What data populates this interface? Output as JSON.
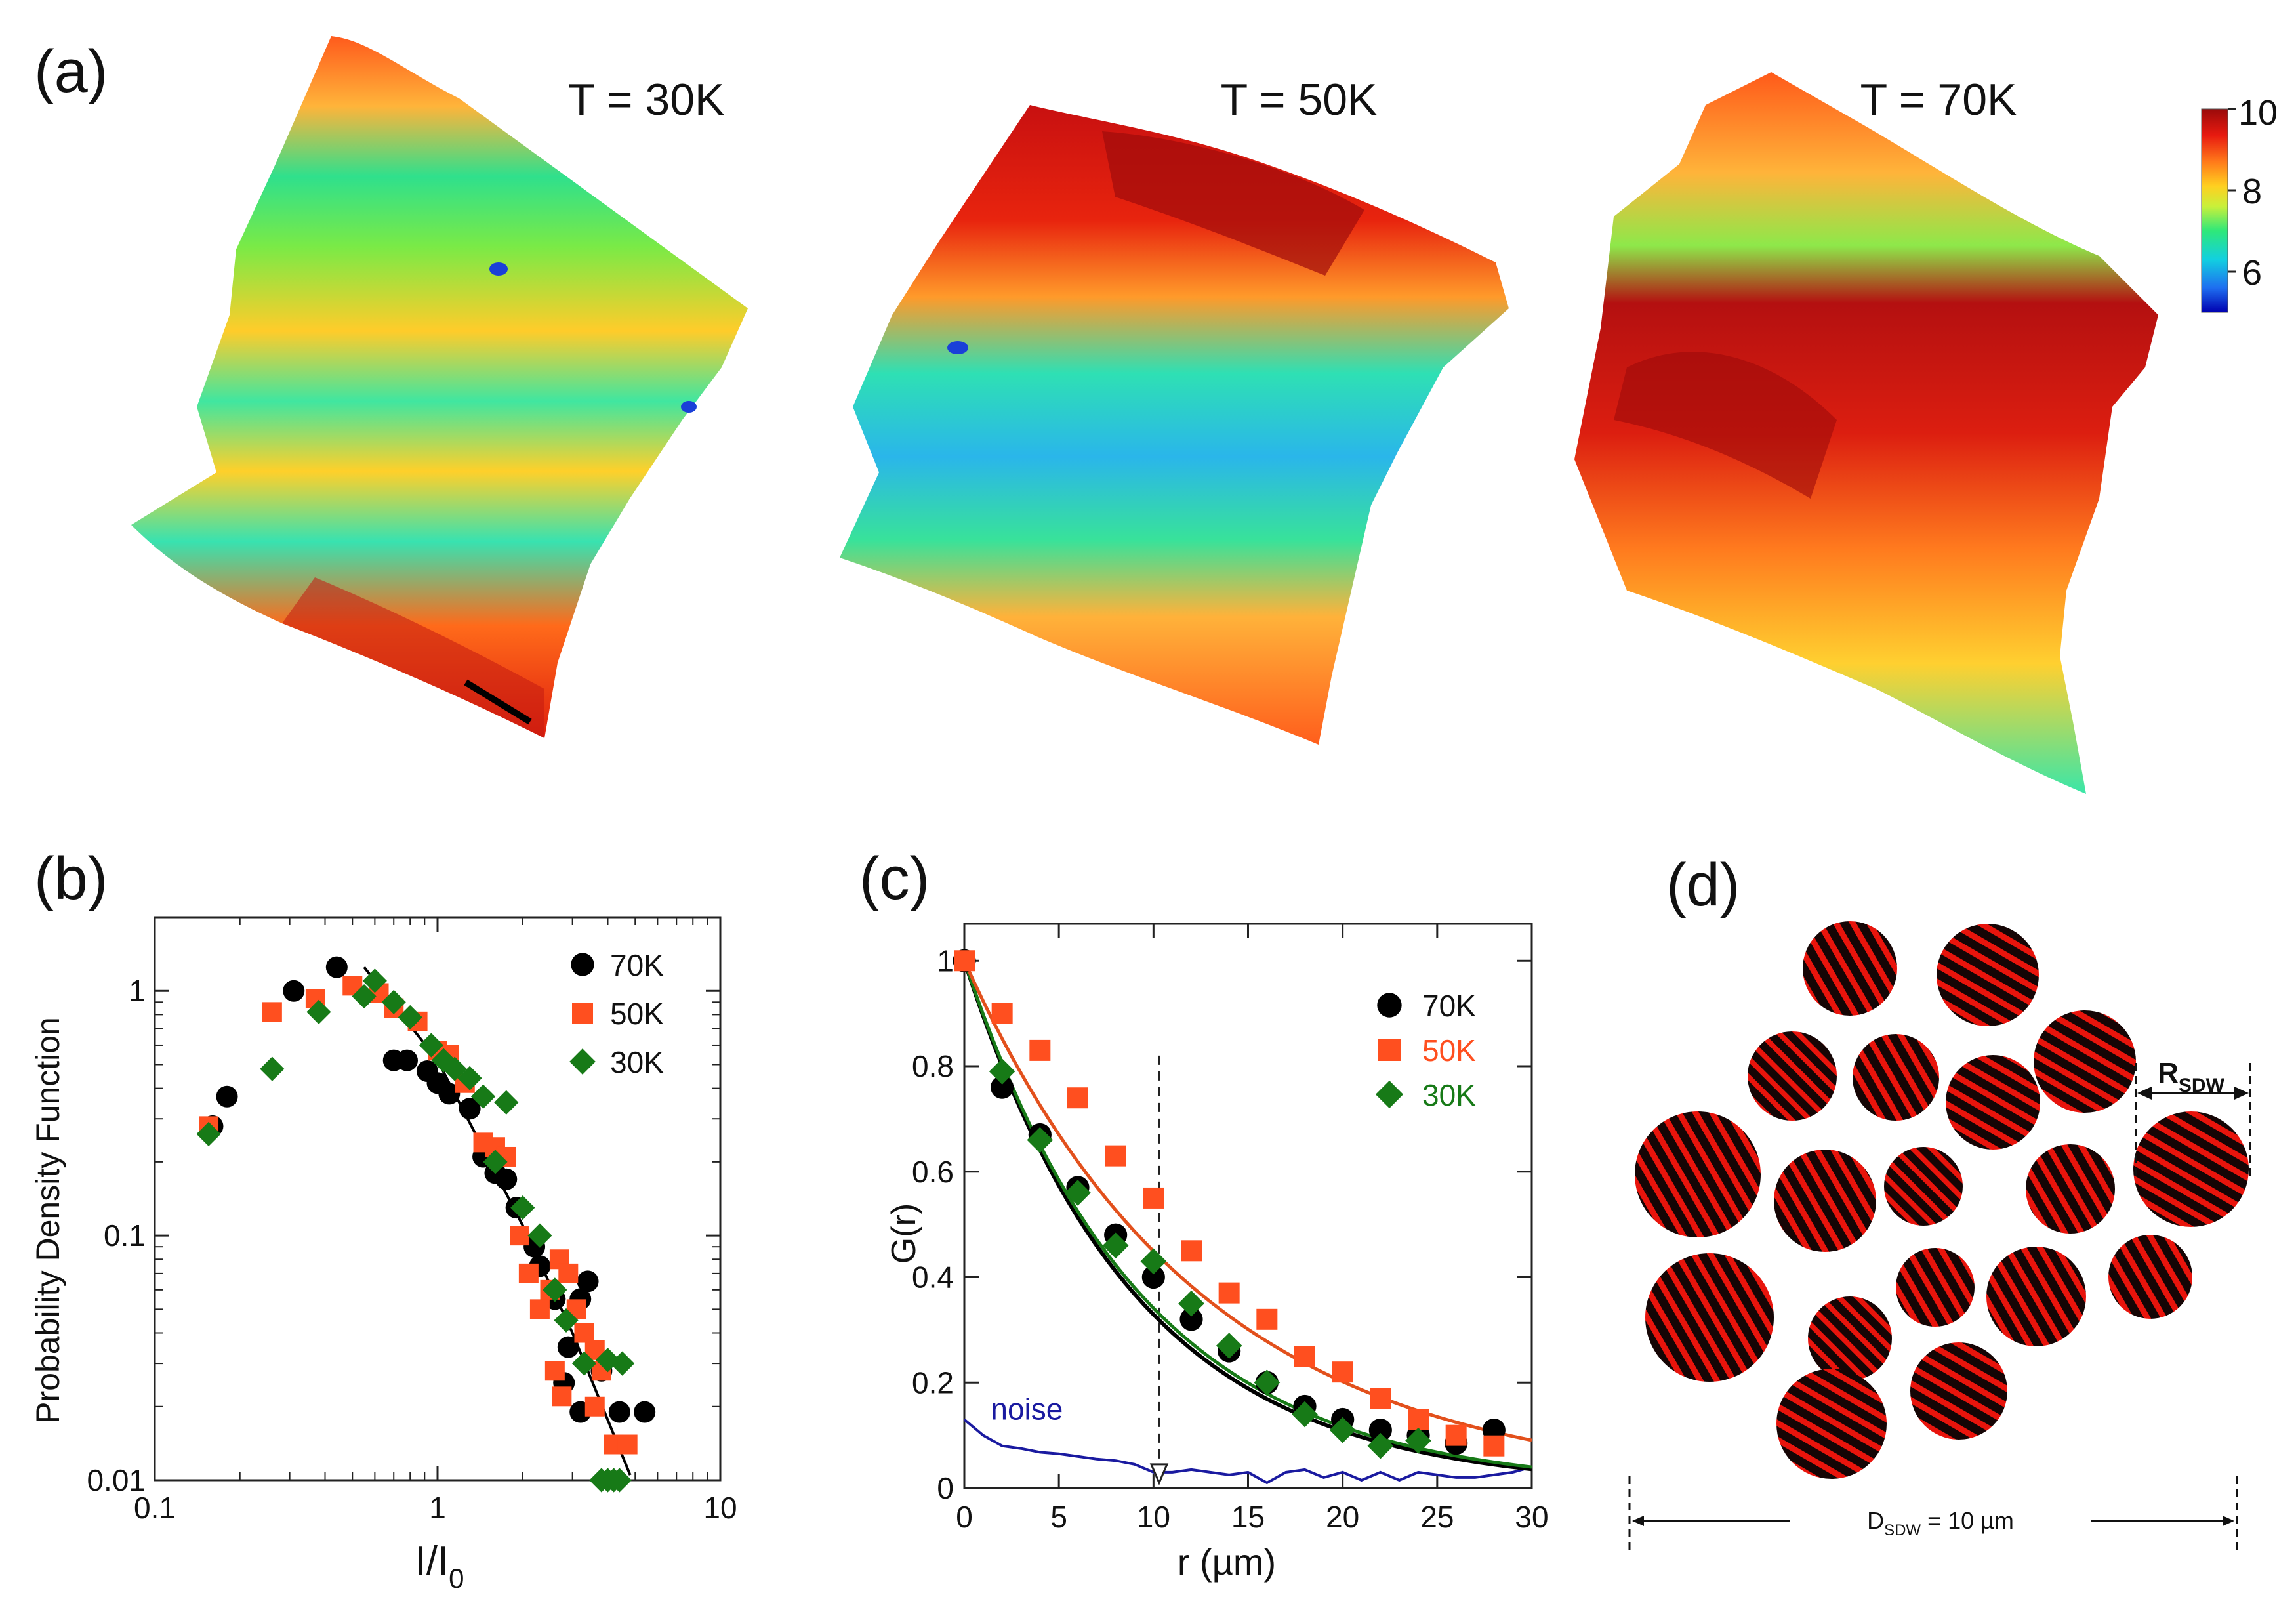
{
  "panel_labels": {
    "a": "(a)",
    "b": "(b)",
    "c": "(c)",
    "d": "(d)"
  },
  "panel_a": {
    "titles": [
      "T = 30K",
      "T = 50K",
      "T = 70K"
    ],
    "colorbar": {
      "ticks": [
        "10",
        "8",
        "6"
      ],
      "range": [
        5,
        10
      ],
      "colors": [
        "#0000b0",
        "#1e6ef0",
        "#12d0e0",
        "#2ee87a",
        "#c8f03a",
        "#ffd020",
        "#ff7a1a",
        "#e81a10",
        "#9a0a0a"
      ]
    }
  },
  "panel_b": {
    "ylabel": "Probability Density Function",
    "xlabel_main": "I/I",
    "xlabel_sub": "0",
    "xticks": [
      "0.1",
      "1",
      "10"
    ],
    "yticks": [
      "0.01",
      "0.1",
      "1"
    ]
  },
  "panel_c": {
    "ylabel": "G(r)",
    "xlabel": "r (µm)",
    "xticks": [
      "0",
      "5",
      "10",
      "15",
      "20",
      "25",
      "30"
    ],
    "yticks": [
      "0",
      "0.2",
      "0.4",
      "0.6",
      "0.8",
      "1"
    ],
    "noise_label": "noise"
  },
  "panel_d": {
    "r_label": "R",
    "r_sub": "SDW",
    "d_label": "D",
    "d_sub": "SDW",
    "d_value": " = 10 µm"
  },
  "chart_data": [
    {
      "id": "b",
      "type": "scatter",
      "xscale": "log",
      "yscale": "log",
      "xlim": [
        0.1,
        10
      ],
      "ylim": [
        0.01,
        2
      ],
      "xlabel": "I/I0",
      "ylabel": "Probability Density Function",
      "legend_position": "top-right",
      "series": [
        {
          "name": "70K",
          "color": "#000000",
          "marker": "circle",
          "points": [
            [
              0.16,
              0.28
            ],
            [
              0.18,
              0.37
            ],
            [
              0.31,
              1.0
            ],
            [
              0.44,
              1.25
            ],
            [
              0.7,
              0.52
            ],
            [
              0.78,
              0.52
            ],
            [
              0.92,
              0.47
            ],
            [
              1.0,
              0.42
            ],
            [
              1.1,
              0.38
            ],
            [
              1.3,
              0.33
            ],
            [
              1.45,
              0.21
            ],
            [
              1.6,
              0.18
            ],
            [
              1.75,
              0.17
            ],
            [
              1.9,
              0.13
            ],
            [
              2.2,
              0.09
            ],
            [
              2.3,
              0.075
            ],
            [
              2.6,
              0.055
            ],
            [
              2.9,
              0.035
            ],
            [
              3.2,
              0.055
            ],
            [
              3.4,
              0.065
            ],
            [
              2.8,
              0.025
            ],
            [
              3.2,
              0.019
            ],
            [
              3.8,
              0.028
            ],
            [
              4.4,
              0.019
            ],
            [
              5.4,
              0.019
            ]
          ]
        },
        {
          "name": "50K",
          "color": "#ff4f1f",
          "marker": "square",
          "points": [
            [
              0.155,
              0.28
            ],
            [
              0.26,
              0.82
            ],
            [
              0.37,
              0.93
            ],
            [
              0.5,
              1.05
            ],
            [
              0.62,
              0.98
            ],
            [
              0.7,
              0.85
            ],
            [
              0.85,
              0.75
            ],
            [
              1.0,
              0.57
            ],
            [
              1.1,
              0.55
            ],
            [
              1.25,
              0.42
            ],
            [
              1.45,
              0.24
            ],
            [
              1.6,
              0.23
            ],
            [
              1.75,
              0.21
            ],
            [
              1.95,
              0.1
            ],
            [
              2.1,
              0.07
            ],
            [
              2.3,
              0.05
            ],
            [
              2.5,
              0.06
            ],
            [
              2.7,
              0.08
            ],
            [
              2.9,
              0.07
            ],
            [
              3.1,
              0.05
            ],
            [
              3.3,
              0.04
            ],
            [
              3.6,
              0.034
            ],
            [
              3.8,
              0.028
            ],
            [
              2.6,
              0.028
            ],
            [
              2.75,
              0.022
            ],
            [
              3.6,
              0.02
            ],
            [
              4.2,
              0.014
            ],
            [
              4.7,
              0.014
            ]
          ]
        },
        {
          "name": "30K",
          "color": "#177a17",
          "marker": "diamond",
          "points": [
            [
              0.155,
              0.26
            ],
            [
              0.26,
              0.48
            ],
            [
              0.38,
              0.82
            ],
            [
              0.55,
              0.95
            ],
            [
              0.6,
              1.1
            ],
            [
              0.7,
              0.9
            ],
            [
              0.8,
              0.78
            ],
            [
              0.95,
              0.6
            ],
            [
              1.05,
              0.52
            ],
            [
              1.15,
              0.48
            ],
            [
              1.3,
              0.44
            ],
            [
              1.45,
              0.37
            ],
            [
              1.6,
              0.2
            ],
            [
              1.75,
              0.35
            ],
            [
              2.0,
              0.13
            ],
            [
              2.3,
              0.1
            ],
            [
              2.6,
              0.06
            ],
            [
              2.85,
              0.045
            ],
            [
              3.3,
              0.03
            ],
            [
              4.0,
              0.031
            ],
            [
              4.5,
              0.03
            ],
            [
              3.8,
              0.01
            ],
            [
              4.0,
              0.01
            ],
            [
              4.2,
              0.01
            ],
            [
              4.4,
              0.01
            ]
          ]
        }
      ],
      "fit_line": {
        "color": "#000000",
        "points": [
          [
            0.55,
            1.25
          ],
          [
            1.0,
            0.52
          ],
          [
            2.0,
            0.11
          ],
          [
            3.0,
            0.04
          ],
          [
            4.8,
            0.0105
          ]
        ]
      }
    },
    {
      "id": "c",
      "type": "scatter",
      "xlim": [
        0,
        30
      ],
      "ylim": [
        0,
        1.07
      ],
      "xlabel": "r (µm)",
      "ylabel": "G(r)",
      "legend_position": "top-right",
      "series": [
        {
          "name": "70K",
          "color": "#000000",
          "marker": "circle",
          "x": [
            0,
            2,
            4,
            6,
            8,
            10,
            12,
            14,
            16,
            18,
            20,
            22,
            24,
            26,
            28
          ],
          "y": [
            1.0,
            0.76,
            0.67,
            0.57,
            0.48,
            0.4,
            0.32,
            0.26,
            0.2,
            0.155,
            0.13,
            0.11,
            0.1,
            0.085,
            0.11
          ]
        },
        {
          "name": "50K",
          "color": "#ff4f1f",
          "marker": "square",
          "x": [
            0,
            2,
            4,
            6,
            8,
            10,
            12,
            14,
            16,
            18,
            20,
            22,
            24,
            26,
            28
          ],
          "y": [
            1.0,
            0.9,
            0.83,
            0.74,
            0.63,
            0.55,
            0.45,
            0.37,
            0.32,
            0.25,
            0.22,
            0.17,
            0.13,
            0.1,
            0.08
          ]
        },
        {
          "name": "30K",
          "color": "#177a17",
          "marker": "diamond",
          "x": [
            2,
            4,
            6,
            8,
            10,
            12,
            14,
            16,
            18,
            20,
            22,
            24
          ],
          "y": [
            0.79,
            0.66,
            0.56,
            0.46,
            0.43,
            0.35,
            0.27,
            0.2,
            0.14,
            0.11,
            0.08,
            0.09
          ]
        }
      ],
      "fits": [
        {
          "name": "70K fit",
          "color": "#000000",
          "decay_length": 9.0
        },
        {
          "name": "30K fit",
          "color": "#177a17",
          "decay_length": 9.3
        },
        {
          "name": "50K fit",
          "color": "#e2501c",
          "decay_length": 12.5
        }
      ],
      "noise": {
        "name": "noise",
        "color": "#1a1aa0",
        "x": [
          0,
          1,
          2,
          3,
          4,
          5,
          6,
          7,
          8,
          9,
          10,
          11,
          12,
          13,
          14,
          15,
          16,
          17,
          18,
          19,
          20,
          21,
          22,
          23,
          24,
          25,
          26,
          27,
          28,
          29,
          30
        ],
        "y": [
          0.13,
          0.1,
          0.08,
          0.075,
          0.068,
          0.065,
          0.06,
          0.055,
          0.052,
          0.045,
          0.03,
          0.03,
          0.035,
          0.03,
          0.025,
          0.03,
          0.01,
          0.03,
          0.035,
          0.02,
          0.03,
          0.015,
          0.03,
          0.015,
          0.03,
          0.025,
          0.02,
          0.02,
          0.025,
          0.03,
          0.04
        ]
      },
      "marker_line": {
        "x": 10.3,
        "y_top": 0.82
      }
    }
  ]
}
